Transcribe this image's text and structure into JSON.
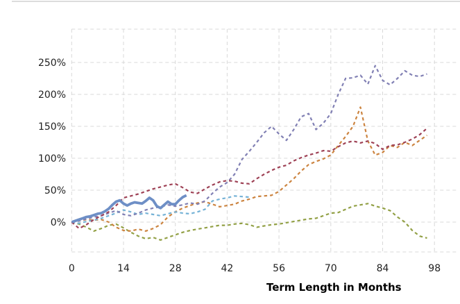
{
  "chart_data": {
    "type": "line",
    "title": "",
    "xlabel": "Term Length in Months",
    "ylabel": "",
    "x_ticks": [
      0,
      14,
      28,
      42,
      56,
      70,
      84,
      98
    ],
    "x_tick_labels": [
      "0",
      "14",
      "28",
      "42",
      "56",
      "70",
      "84",
      "98"
    ],
    "y_tick_values": [
      0,
      50,
      100,
      150,
      200,
      250
    ],
    "y_tick_labels": [
      "0%",
      "50%",
      "100%",
      "150%",
      "200%",
      "250%"
    ],
    "xlim": [
      0,
      104
    ],
    "ylim": [
      -47,
      302
    ],
    "grid": true,
    "grid_color": "#d8d8d8",
    "background_color": "#ffffff",
    "tick_label_color": "#1f1f1f",
    "legend": "none",
    "x_unit": "months",
    "y_unit": "percent cumulative return",
    "series": [
      {
        "name": "dashed-olive",
        "color": "#92a045",
        "dash": true,
        "line_width": 2.2,
        "month_start": 0,
        "month_step": 2,
        "values": [
          0,
          -3,
          -8,
          -14,
          -10,
          -5,
          -3,
          -9,
          -16,
          -22,
          -26,
          -24,
          -28,
          -24,
          -20,
          -16,
          -13,
          -11,
          -9,
          -7,
          -5,
          -5,
          -3,
          -2,
          -4,
          -8,
          -6,
          -4,
          -3,
          -1,
          1,
          3,
          5,
          6,
          10,
          14,
          15,
          20,
          25,
          27,
          29,
          25,
          22,
          18,
          8,
          0,
          -13,
          -22,
          -25
        ]
      },
      {
        "name": "dashed-orange",
        "color": "#cc8440",
        "dash": true,
        "line_width": 2.2,
        "month_start": 0,
        "month_step": 2,
        "values": [
          0,
          2,
          4,
          3,
          4,
          0,
          -8,
          -13,
          -14,
          -11,
          -14,
          -10,
          -4,
          8,
          16,
          22,
          26,
          30,
          32,
          28,
          24,
          26,
          28,
          33,
          36,
          40,
          41,
          42,
          48,
          58,
          68,
          80,
          90,
          95,
          99,
          105,
          120,
          134,
          150,
          180,
          127,
          105,
          109,
          120,
          117,
          125,
          120,
          128,
          136
        ]
      },
      {
        "name": "dashed-sky-blue",
        "color": "#75b2d6",
        "dash": true,
        "line_width": 2.2,
        "month_start": 0,
        "month_step": 2,
        "values": [
          0,
          -2,
          1,
          3,
          6,
          10,
          14,
          19,
          16,
          12,
          14,
          12,
          10,
          13,
          16,
          14,
          13,
          16,
          20,
          33,
          36,
          38,
          41,
          40,
          39
        ]
      },
      {
        "name": "dashed-purple",
        "color": "#8180b4",
        "dash": true,
        "line_width": 2.2,
        "month_start": 0,
        "month_step": 2,
        "values": [
          0,
          2,
          5,
          8,
          10,
          14,
          18,
          12,
          10,
          14,
          19,
          22,
          24,
          27,
          25,
          27,
          30,
          28,
          33,
          45,
          55,
          62,
          75,
          98,
          111,
          125,
          140,
          150,
          138,
          128,
          145,
          165,
          170,
          145,
          155,
          170,
          200,
          225,
          226,
          230,
          216,
          245,
          222,
          215,
          225,
          237,
          230,
          228,
          232
        ]
      },
      {
        "name": "dashed-maroon",
        "color": "#9e4155",
        "dash": true,
        "line_width": 2.2,
        "month_start": 0,
        "month_step": 2,
        "values": [
          0,
          -10,
          -4,
          4,
          10,
          16,
          26,
          38,
          41,
          44,
          48,
          52,
          55,
          58,
          60,
          54,
          47,
          45,
          52,
          58,
          63,
          65,
          64,
          61,
          60,
          68,
          75,
          81,
          86,
          89,
          96,
          101,
          105,
          108,
          112,
          111,
          118,
          124,
          127,
          124,
          127,
          123,
          114,
          120,
          121,
          125,
          130,
          137,
          147
        ]
      },
      {
        "name": "solid-blue-highlighted",
        "color": "#6e8fc6",
        "dash": false,
        "line_width": 3.8,
        "month_start": 0,
        "month_step": 1,
        "values": [
          0,
          2,
          4,
          6,
          8,
          9,
          11,
          13,
          14,
          17,
          21,
          27,
          32,
          34,
          29,
          26,
          29,
          31,
          30,
          29,
          33,
          38,
          34,
          25,
          22,
          27,
          32,
          28,
          28,
          34,
          39,
          42
        ]
      }
    ]
  }
}
